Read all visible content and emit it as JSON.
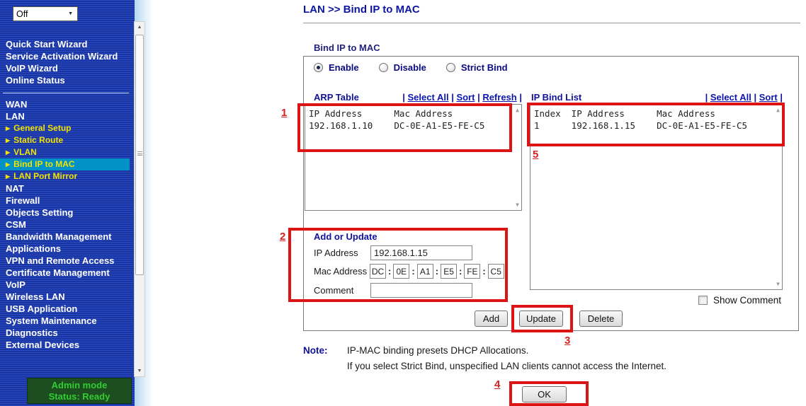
{
  "sidebar": {
    "dropdown": {
      "value": "Off"
    },
    "wizard_items": [
      "Quick Start Wizard",
      "Service Activation Wizard",
      "VoIP Wizard",
      "Online Status"
    ],
    "menu_items": [
      {
        "label": "WAN",
        "type": "main"
      },
      {
        "label": "LAN",
        "type": "main"
      },
      {
        "label": "General Setup",
        "type": "sub"
      },
      {
        "label": "Static Route",
        "type": "sub"
      },
      {
        "label": "VLAN",
        "type": "sub"
      },
      {
        "label": "Bind IP to MAC",
        "type": "sub",
        "active": true
      },
      {
        "label": "LAN Port Mirror",
        "type": "sub"
      },
      {
        "label": "NAT",
        "type": "main"
      },
      {
        "label": "Firewall",
        "type": "main"
      },
      {
        "label": "Objects Setting",
        "type": "main"
      },
      {
        "label": "CSM",
        "type": "main"
      },
      {
        "label": "Bandwidth Management",
        "type": "main"
      },
      {
        "label": "Applications",
        "type": "main"
      },
      {
        "label": "VPN and Remote Access",
        "type": "main"
      },
      {
        "label": "Certificate Management",
        "type": "main"
      },
      {
        "label": "VoIP",
        "type": "main"
      },
      {
        "label": "Wireless LAN",
        "type": "main"
      },
      {
        "label": "USB Application",
        "type": "main"
      },
      {
        "label": "System Maintenance",
        "type": "main"
      },
      {
        "label": "Diagnostics",
        "type": "main"
      },
      {
        "label": "External Devices",
        "type": "main"
      }
    ],
    "status": {
      "mode": "Admin mode",
      "state": "Status: Ready"
    }
  },
  "main": {
    "breadcrumb": "LAN >> Bind IP to MAC",
    "panel_title": "Bind IP to MAC",
    "radios": [
      {
        "label": "Enable",
        "selected": true
      },
      {
        "label": "Disable",
        "selected": false
      },
      {
        "label": "Strict Bind",
        "selected": false
      }
    ],
    "arp_table": {
      "title": "ARP Table",
      "links": [
        "Select All",
        "Sort",
        "Refresh"
      ],
      "rows": [
        "IP Address      Mac Address",
        "192.168.1.10    DC-0E-A1-E5-FE-C5"
      ]
    },
    "ip_bind_list": {
      "title": "IP Bind List",
      "links": [
        "Select All",
        "Sort"
      ],
      "rows": [
        "Index  IP Address      Mac Address",
        "1      192.168.1.15    DC-0E-A1-E5-FE-C5"
      ]
    },
    "add_or_update": {
      "title": "Add or Update",
      "fields": {
        "ip_label": "IP Address",
        "ip_value": "192.168.1.15",
        "mac_label": "Mac Address",
        "mac_parts": [
          "DC",
          "0E",
          "A1",
          "E5",
          "FE",
          "C5"
        ],
        "comment_label": "Comment",
        "comment_value": ""
      }
    },
    "show_comment": {
      "label": "Show Comment",
      "checked": false
    },
    "buttons": {
      "add": "Add",
      "update": "Update",
      "delete": "Delete",
      "ok": "OK"
    },
    "note": {
      "label": "Note:",
      "lines": [
        "IP-MAC binding presets DHCP Allocations.",
        "If you select Strict Bind, unspecified LAN clients cannot access the Internet."
      ]
    },
    "annotations": {
      "n1": "1",
      "n2": "2",
      "n3": "3",
      "n4": "4",
      "n5": "5"
    }
  },
  "colors": {
    "sidebar_blue": "#1a35a2",
    "sidebar_stripe": "#2a4cc2",
    "active_highlight": "#0092c6",
    "menu_yellow": "#f3e400",
    "heading_navy": "#10129c",
    "link_navy": "#0b16ad",
    "annotation_red": "#dd1414",
    "status_bg_green": "#1c4e1f",
    "status_text_green": "#33cc33"
  }
}
